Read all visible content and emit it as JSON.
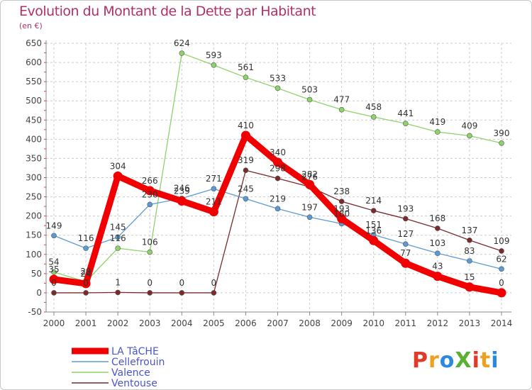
{
  "title": "Evolution du Montant de la Dette par Habitant",
  "subtitle": "(en €)",
  "logo": {
    "text": "ProXiti",
    "letters": [
      "P",
      "r",
      "o",
      "X",
      "i",
      "t",
      "i"
    ],
    "colors": [
      "#e03a2a",
      "#f0a020",
      "#2a8ae0",
      "#5ab030",
      "#e03a2a",
      "#f0a020",
      "#2a8ae0"
    ]
  },
  "chart_data": {
    "type": "line",
    "x": [
      "2000",
      "2001",
      "2002",
      "2003",
      "2004",
      "2005",
      "2006",
      "2007",
      "2008",
      "2009",
      "2010",
      "2011",
      "2012",
      "2013",
      "2014"
    ],
    "ylim": [
      -50,
      650
    ],
    "yticks": [
      -50,
      0,
      50,
      100,
      150,
      200,
      250,
      300,
      350,
      400,
      450,
      500,
      550,
      600,
      650
    ],
    "grid": true,
    "legend_position": "bottom-left",
    "series": [
      {
        "name": "Ventouse",
        "color": "#7a2a2a",
        "values": [
          0,
          0,
          1,
          0,
          0,
          0,
          319,
          298,
          276,
          238,
          214,
          193,
          168,
          137,
          109
        ]
      },
      {
        "name": "Valence",
        "color": "#8ed36a",
        "values": [
          54,
          29,
          116,
          106,
          624,
          593,
          561,
          533,
          503,
          477,
          458,
          441,
          419,
          409,
          390
        ]
      },
      {
        "name": "Cellefrouin",
        "color": "#5b9bd5",
        "values": [
          149,
          116,
          145,
          230,
          246,
          271,
          245,
          219,
          197,
          180,
          151,
          127,
          103,
          83,
          62
        ]
      },
      {
        "name": "LA TâCHE",
        "color": "#f00000",
        "values": [
          35,
          24,
          304,
          266,
          239,
          211,
          410,
          340,
          282,
          193,
          136,
          77,
          43,
          15,
          0
        ]
      }
    ],
    "legend_order": [
      "LA TâCHE",
      "Cellefrouin",
      "Valence",
      "Ventouse"
    ]
  }
}
